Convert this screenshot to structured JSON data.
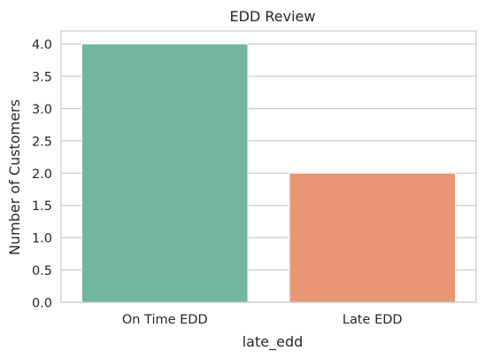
{
  "chart_data": {
    "type": "bar",
    "title": "EDD Review",
    "xlabel": "late_edd",
    "ylabel": "Number of Customers",
    "categories": [
      "On Time EDD",
      "Late EDD"
    ],
    "values": [
      4,
      2
    ],
    "colors": [
      "#72b6a1",
      "#e99675"
    ],
    "ylim": [
      0,
      4.2
    ],
    "yticks": [
      "0.0",
      "0.5",
      "1.0",
      "1.5",
      "2.0",
      "2.5",
      "3.0",
      "3.5",
      "4.0"
    ],
    "grid": true,
    "legend": "none"
  },
  "style": {
    "background": "#ffffff",
    "grid_color": "#cccccc",
    "spine_color": "#cccccc",
    "text_color": "#262626"
  }
}
